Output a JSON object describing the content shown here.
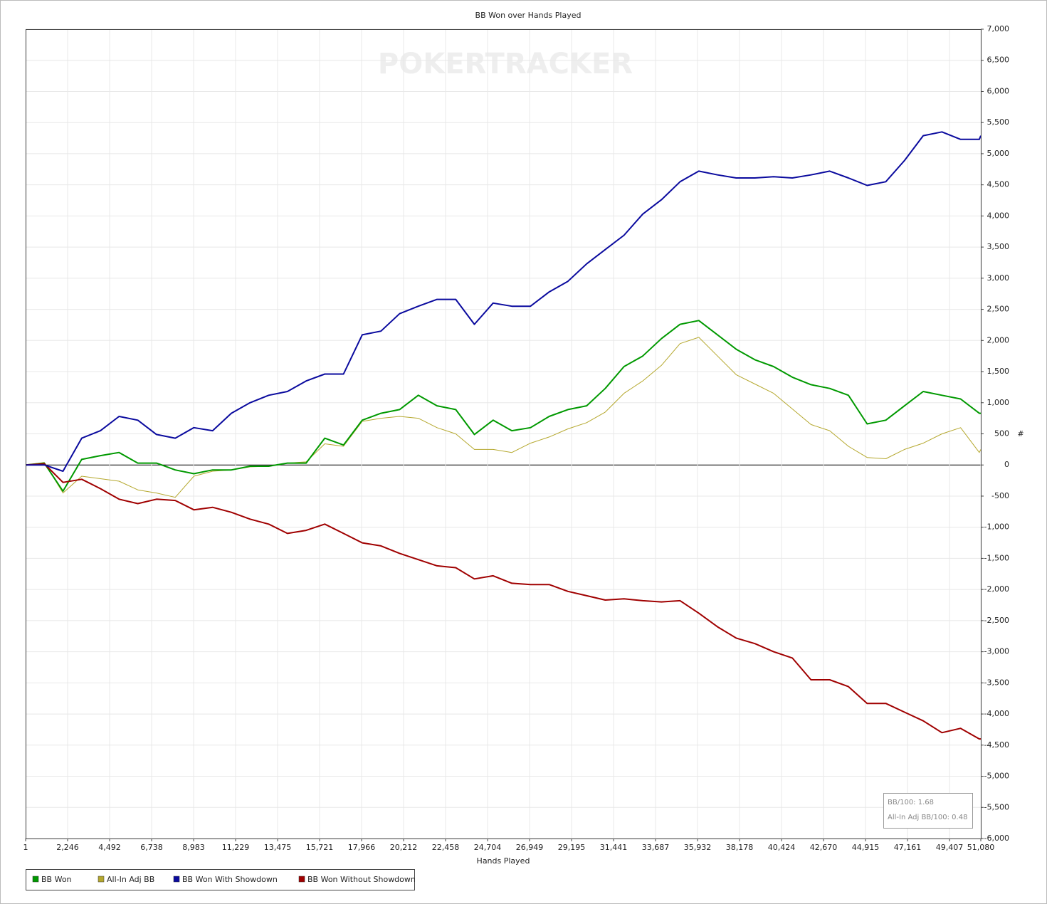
{
  "chart_data": {
    "type": "line",
    "title": "BB Won over Hands Played",
    "xlabel": "Hands Played",
    "ylabel": "#",
    "watermark": "POKERTRACKER",
    "grid": true,
    "legend": "bottom-left",
    "stats": [
      "BB/100: 1.68",
      "All-In Adj BB/100: 0.48"
    ],
    "xlim": [
      1,
      51080
    ],
    "ylim": [
      -6000,
      7000
    ],
    "xticks": [
      1,
      {
        "value": 2246,
        "label": "2,246"
      },
      {
        "value": 4492,
        "label": "4,492"
      },
      {
        "value": 6738,
        "label": "6,738"
      },
      {
        "value": 8983,
        "label": "8,983"
      },
      {
        "value": 11229,
        "label": "11,229"
      },
      {
        "value": 13475,
        "label": "13,475"
      },
      {
        "value": 15721,
        "label": "15,721"
      },
      {
        "value": 17966,
        "label": "17,966"
      },
      {
        "value": 20212,
        "label": "20,212"
      },
      {
        "value": 22458,
        "label": "22,458"
      },
      {
        "value": 24704,
        "label": "24,704"
      },
      {
        "value": 26949,
        "label": "26,949"
      },
      {
        "value": 29195,
        "label": "29,195"
      },
      {
        "value": 31441,
        "label": "31,441"
      },
      {
        "value": 33687,
        "label": "33,687"
      },
      {
        "value": 35932,
        "label": "35,932"
      },
      {
        "value": 38178,
        "label": "38,178"
      },
      {
        "value": 40424,
        "label": "40,424"
      },
      {
        "value": 42670,
        "label": "42,670"
      },
      {
        "value": 44915,
        "label": "44,915"
      },
      {
        "value": 47161,
        "label": "47,161"
      },
      {
        "value": 49407,
        "label": "49,407"
      },
      {
        "value": 51080,
        "label": "51,080"
      }
    ],
    "yticks": [
      {
        "value": 7000,
        "label": "7,000"
      },
      {
        "value": 6500,
        "label": "6,500"
      },
      {
        "value": 6000,
        "label": "6,000"
      },
      {
        "value": 5500,
        "label": "5,500"
      },
      {
        "value": 5000,
        "label": "5,000"
      },
      {
        "value": 4500,
        "label": "4,500"
      },
      {
        "value": 4000,
        "label": "4,000"
      },
      {
        "value": 3500,
        "label": "3,500"
      },
      {
        "value": 3000,
        "label": "3,000"
      },
      {
        "value": 2500,
        "label": "2,500"
      },
      {
        "value": 2000,
        "label": "2,000"
      },
      {
        "value": 1500,
        "label": "1,500"
      },
      {
        "value": 1000,
        "label": "1,000"
      },
      500,
      0,
      -500,
      {
        "value": -1000,
        "label": "-1,000"
      },
      {
        "value": -1500,
        "label": "-1,500"
      },
      {
        "value": -2000,
        "label": "-2,000"
      },
      {
        "value": -2500,
        "label": "-2,500"
      },
      {
        "value": -3000,
        "label": "-3,000"
      },
      {
        "value": -3500,
        "label": "-3,500"
      },
      {
        "value": -4000,
        "label": "-4,000"
      },
      {
        "value": -4500,
        "label": "-4,500"
      },
      {
        "value": -5000,
        "label": "-5,000"
      },
      {
        "value": -5500,
        "label": "-5,500"
      },
      {
        "value": -6000,
        "label": "-6,000"
      }
    ],
    "x": [
      1,
      1000,
      2000,
      3000,
      4000,
      5000,
      6000,
      7000,
      8000,
      9000,
      10000,
      11000,
      12000,
      13000,
      14000,
      15000,
      16000,
      17000,
      18000,
      19000,
      20000,
      21000,
      22000,
      23000,
      24000,
      25000,
      26000,
      27000,
      28000,
      29000,
      30000,
      31000,
      32000,
      33000,
      34000,
      35000,
      36000,
      37000,
      38000,
      39000,
      40000,
      41000,
      42000,
      43000,
      44000,
      45000,
      46000,
      47000,
      48000,
      49000,
      50000,
      51000,
      51080
    ],
    "series": [
      {
        "name": "BB Won",
        "color": "#009900",
        "width": 2,
        "values": [
          0,
          30,
          -420,
          90,
          150,
          200,
          30,
          30,
          -80,
          -140,
          -80,
          -80,
          -20,
          -20,
          30,
          30,
          430,
          320,
          720,
          830,
          890,
          1120,
          950,
          890,
          490,
          720,
          550,
          600,
          780,
          890,
          950,
          1230,
          1580,
          1750,
          2030,
          2260,
          2320,
          2090,
          1860,
          1690,
          1580,
          1410,
          1290,
          1230,
          1120,
          660,
          720,
          950,
          1180,
          1120,
          1060,
          830,
          830
        ]
      },
      {
        "name": "All-In Adj BB",
        "color": "#b5a82e",
        "width": 1,
        "values": [
          0,
          40,
          -450,
          -180,
          -220,
          -260,
          -400,
          -450,
          -520,
          -180,
          -100,
          -80,
          -30,
          -20,
          30,
          50,
          340,
          300,
          700,
          750,
          780,
          750,
          600,
          500,
          250,
          250,
          200,
          350,
          450,
          580,
          680,
          850,
          1150,
          1350,
          1600,
          1950,
          2050,
          1750,
          1450,
          1300,
          1150,
          900,
          650,
          550,
          300,
          120,
          100,
          250,
          350,
          500,
          600,
          200,
          250
        ]
      },
      {
        "name": "BB Won With Showdown",
        "color": "#0a0a9e",
        "width": 2,
        "values": [
          0,
          0,
          -100,
          430,
          550,
          780,
          720,
          490,
          430,
          600,
          550,
          830,
          1000,
          1120,
          1180,
          1350,
          1460,
          1460,
          2090,
          2150,
          2430,
          2550,
          2660,
          2660,
          2260,
          2600,
          2550,
          2550,
          2780,
          2950,
          3230,
          3460,
          3690,
          4030,
          4260,
          4550,
          4720,
          4660,
          4610,
          4610,
          4630,
          4610,
          4660,
          4720,
          4610,
          4490,
          4550,
          4890,
          5290,
          5350,
          5230,
          5230,
          5290
        ]
      },
      {
        "name": "BB Won Without Showdown",
        "color": "#a00000",
        "width": 2,
        "values": [
          0,
          20,
          -280,
          -230,
          -380,
          -550,
          -620,
          -550,
          -570,
          -720,
          -680,
          -760,
          -870,
          -950,
          -1100,
          -1050,
          -950,
          -1100,
          -1250,
          -1300,
          -1420,
          -1520,
          -1620,
          -1650,
          -1830,
          -1780,
          -1900,
          -1920,
          -1920,
          -2030,
          -2100,
          -2170,
          -2150,
          -2180,
          -2200,
          -2180,
          -2380,
          -2600,
          -2780,
          -2870,
          -3000,
          -3100,
          -3450,
          -3450,
          -3560,
          -3830,
          -3830,
          -3970,
          -4110,
          -4300,
          -4230,
          -4400,
          -4400
        ]
      }
    ]
  }
}
